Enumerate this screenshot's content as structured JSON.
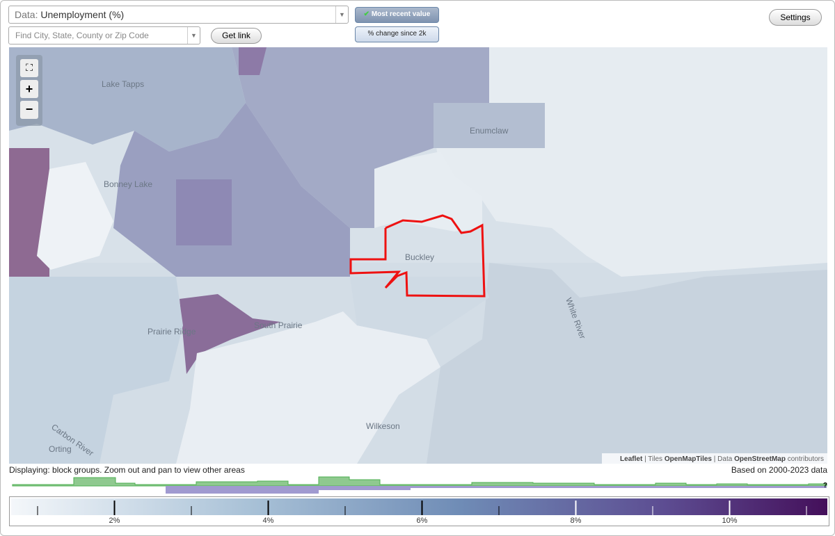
{
  "controls": {
    "data_label": "Data:",
    "data_value": "Unemployment (%)",
    "search_placeholder": "Find City, State, County or Zip Code",
    "get_link": "Get link",
    "most_recent": "Most recent value",
    "change": "% change since 2k",
    "settings": "Settings"
  },
  "map": {
    "places": [
      "Lake Tapps",
      "Bonney Lake",
      "Enumclaw",
      "Buckley",
      "Prairie Ridge",
      "South Prairie",
      "Wilkeson",
      "Orting",
      "Carbon River",
      "White River"
    ],
    "attribution": {
      "leaflet": "Leaflet",
      "sep1": "|",
      "tiles": "Tiles",
      "tiles_src": "OpenMapTiles",
      "sep2": "|",
      "data": "Data",
      "data_src": "OpenStreetMap",
      "contributors": "contributors"
    }
  },
  "footer": {
    "displaying": "Displaying: block groups. Zoom out and pan to view other areas",
    "based_on": "Based on 2000-2023 data",
    "help": "?"
  },
  "legend": {
    "labels": [
      "2%",
      "4%",
      "6%",
      "8%",
      "10%"
    ]
  }
}
